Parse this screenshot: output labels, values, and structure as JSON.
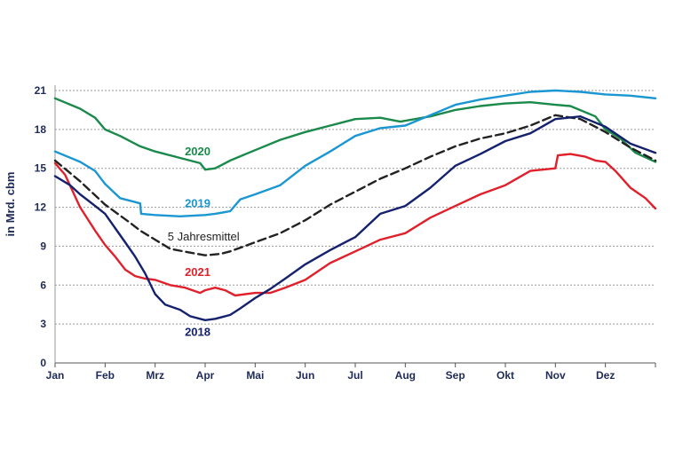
{
  "chart_data": {
    "type": "line",
    "ylabel": "in Mrd. cbm",
    "ylim": [
      0,
      21
    ],
    "yticks": [
      0,
      3,
      6,
      9,
      12,
      15,
      18,
      21
    ],
    "xlim": [
      0,
      12
    ],
    "grid": "horizontal dotted",
    "months": [
      "Jan",
      "Feb",
      "Mrz",
      "Apr",
      "Mai",
      "Jun",
      "Jul",
      "Aug",
      "Sep",
      "Okt",
      "Nov",
      "Dez"
    ],
    "series": [
      {
        "name": "2020",
        "color": "#1a8a4a",
        "dashed": false,
        "points": [
          [
            0.0,
            20.4
          ],
          [
            0.5,
            19.6
          ],
          [
            0.8,
            18.9
          ],
          [
            1.0,
            18.0
          ],
          [
            1.3,
            17.5
          ],
          [
            1.7,
            16.7
          ],
          [
            2.0,
            16.3
          ],
          [
            2.5,
            15.8
          ],
          [
            2.9,
            15.4
          ],
          [
            3.0,
            14.9
          ],
          [
            3.2,
            15.0
          ],
          [
            3.5,
            15.6
          ],
          [
            4.0,
            16.4
          ],
          [
            4.5,
            17.2
          ],
          [
            5.0,
            17.8
          ],
          [
            5.5,
            18.3
          ],
          [
            6.0,
            18.8
          ],
          [
            6.5,
            18.9
          ],
          [
            6.9,
            18.6
          ],
          [
            7.5,
            19.0
          ],
          [
            8.0,
            19.5
          ],
          [
            8.5,
            19.8
          ],
          [
            9.0,
            20.0
          ],
          [
            9.5,
            20.1
          ],
          [
            10.0,
            19.9
          ],
          [
            10.3,
            19.8
          ],
          [
            10.8,
            19.0
          ],
          [
            11.0,
            18.0
          ],
          [
            11.3,
            17.3
          ],
          [
            11.6,
            16.2
          ],
          [
            12.0,
            15.5
          ]
        ],
        "label": "2020"
      },
      {
        "name": "2019",
        "color": "#1a96d2",
        "dashed": false,
        "points": [
          [
            0.0,
            16.3
          ],
          [
            0.5,
            15.5
          ],
          [
            0.8,
            14.8
          ],
          [
            1.0,
            13.8
          ],
          [
            1.3,
            12.7
          ],
          [
            1.6,
            12.4
          ],
          [
            1.7,
            12.3
          ],
          [
            1.72,
            11.5
          ],
          [
            2.0,
            11.4
          ],
          [
            2.5,
            11.3
          ],
          [
            3.0,
            11.4
          ],
          [
            3.2,
            11.5
          ],
          [
            3.5,
            11.7
          ],
          [
            3.7,
            12.6
          ],
          [
            4.0,
            13.0
          ],
          [
            4.5,
            13.7
          ],
          [
            5.0,
            15.2
          ],
          [
            5.5,
            16.3
          ],
          [
            6.0,
            17.5
          ],
          [
            6.5,
            18.1
          ],
          [
            7.0,
            18.3
          ],
          [
            7.5,
            19.1
          ],
          [
            8.0,
            19.9
          ],
          [
            8.5,
            20.3
          ],
          [
            9.0,
            20.6
          ],
          [
            9.5,
            20.9
          ],
          [
            10.0,
            21.0
          ],
          [
            10.5,
            20.9
          ],
          [
            11.0,
            20.7
          ],
          [
            11.5,
            20.6
          ],
          [
            12.0,
            20.4
          ]
        ],
        "label": "2019"
      },
      {
        "name": "5 Jahresmittel",
        "color": "#222222",
        "dashed": true,
        "points": [
          [
            0.0,
            15.6
          ],
          [
            0.5,
            14.0
          ],
          [
            1.0,
            12.2
          ],
          [
            1.5,
            10.8
          ],
          [
            1.7,
            10.2
          ],
          [
            2.0,
            9.5
          ],
          [
            2.3,
            8.8
          ],
          [
            2.7,
            8.5
          ],
          [
            3.0,
            8.3
          ],
          [
            3.3,
            8.4
          ],
          [
            3.5,
            8.6
          ],
          [
            4.0,
            9.3
          ],
          [
            4.5,
            10.0
          ],
          [
            5.0,
            11.0
          ],
          [
            5.5,
            12.2
          ],
          [
            6.0,
            13.2
          ],
          [
            6.5,
            14.2
          ],
          [
            7.0,
            15.0
          ],
          [
            7.5,
            15.9
          ],
          [
            8.0,
            16.7
          ],
          [
            8.5,
            17.3
          ],
          [
            9.0,
            17.7
          ],
          [
            9.5,
            18.3
          ],
          [
            10.0,
            19.1
          ],
          [
            10.5,
            18.8
          ],
          [
            11.0,
            17.8
          ],
          [
            11.5,
            16.6
          ],
          [
            12.0,
            15.6
          ]
        ],
        "label": "5 Jahresmittel"
      },
      {
        "name": "2021",
        "color": "#e0202a",
        "dashed": false,
        "points": [
          [
            0.0,
            15.4
          ],
          [
            0.2,
            14.5
          ],
          [
            0.5,
            12.0
          ],
          [
            0.8,
            10.2
          ],
          [
            1.0,
            9.1
          ],
          [
            1.2,
            8.2
          ],
          [
            1.4,
            7.2
          ],
          [
            1.6,
            6.7
          ],
          [
            1.8,
            6.5
          ],
          [
            2.0,
            6.4
          ],
          [
            2.3,
            6.0
          ],
          [
            2.6,
            5.8
          ],
          [
            2.9,
            5.4
          ],
          [
            3.0,
            5.6
          ],
          [
            3.2,
            5.8
          ],
          [
            3.4,
            5.6
          ],
          [
            3.6,
            5.2
          ],
          [
            4.0,
            5.4
          ],
          [
            4.3,
            5.4
          ],
          [
            4.6,
            5.8
          ],
          [
            5.0,
            6.4
          ],
          [
            5.5,
            7.7
          ],
          [
            6.0,
            8.6
          ],
          [
            6.5,
            9.5
          ],
          [
            7.0,
            10.0
          ],
          [
            7.5,
            11.2
          ],
          [
            8.0,
            12.1
          ],
          [
            8.5,
            13.0
          ],
          [
            9.0,
            13.7
          ],
          [
            9.5,
            14.8
          ],
          [
            10.0,
            15.0
          ],
          [
            10.05,
            16.0
          ],
          [
            10.3,
            16.1
          ],
          [
            10.6,
            15.9
          ],
          [
            10.8,
            15.6
          ],
          [
            11.0,
            15.5
          ],
          [
            11.2,
            14.8
          ],
          [
            11.5,
            13.5
          ],
          [
            11.8,
            12.7
          ],
          [
            12.0,
            11.9
          ]
        ],
        "label": "2021"
      },
      {
        "name": "2018",
        "color": "#14226e",
        "dashed": false,
        "points": [
          [
            0.0,
            14.4
          ],
          [
            0.3,
            13.7
          ],
          [
            0.5,
            13.0
          ],
          [
            0.8,
            12.1
          ],
          [
            1.0,
            11.5
          ],
          [
            1.2,
            10.4
          ],
          [
            1.4,
            9.3
          ],
          [
            1.6,
            8.2
          ],
          [
            1.8,
            6.9
          ],
          [
            2.0,
            5.3
          ],
          [
            2.2,
            4.5
          ],
          [
            2.5,
            4.1
          ],
          [
            2.7,
            3.6
          ],
          [
            3.0,
            3.3
          ],
          [
            3.2,
            3.4
          ],
          [
            3.5,
            3.7
          ],
          [
            3.7,
            4.2
          ],
          [
            4.0,
            5.0
          ],
          [
            4.3,
            5.7
          ],
          [
            4.6,
            6.5
          ],
          [
            5.0,
            7.6
          ],
          [
            5.5,
            8.7
          ],
          [
            6.0,
            9.7
          ],
          [
            6.5,
            11.5
          ],
          [
            7.0,
            12.1
          ],
          [
            7.5,
            13.5
          ],
          [
            8.0,
            15.2
          ],
          [
            8.5,
            16.1
          ],
          [
            9.0,
            17.1
          ],
          [
            9.5,
            17.7
          ],
          [
            10.0,
            18.8
          ],
          [
            10.5,
            19.0
          ],
          [
            11.0,
            18.2
          ],
          [
            11.5,
            16.9
          ],
          [
            12.0,
            16.2
          ]
        ],
        "label": "2018"
      }
    ]
  }
}
